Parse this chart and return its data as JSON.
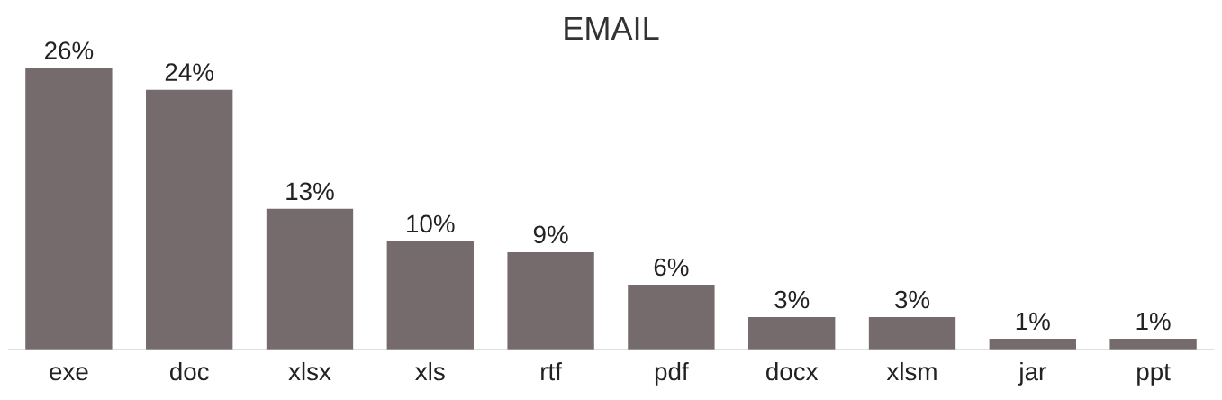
{
  "chart_data": {
    "type": "bar",
    "title": "EMAIL",
    "categories": [
      "exe",
      "doc",
      "xlsx",
      "xls",
      "rtf",
      "pdf",
      "docx",
      "xlsm",
      "jar",
      "ppt"
    ],
    "values": [
      26,
      24,
      13,
      10,
      9,
      6,
      3,
      3,
      1,
      1
    ],
    "value_labels": [
      "26%",
      "24%",
      "13%",
      "10%",
      "9%",
      "6%",
      "3%",
      "3%",
      "1%",
      "1%"
    ],
    "color": "#756a6c",
    "grid": false,
    "legend": false
  }
}
